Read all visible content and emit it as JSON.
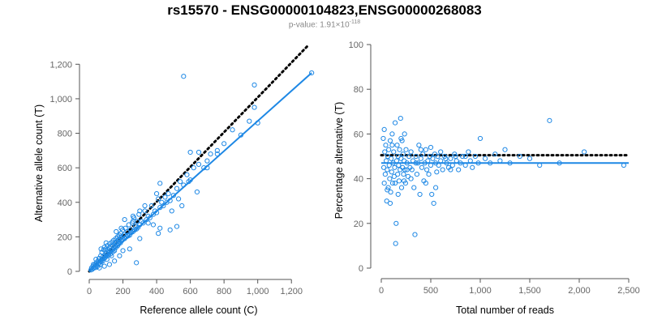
{
  "title": "rs15570 - ENSG00000104823,ENSG00000268083",
  "subtitle": {
    "prefix": "p-value: 1.91×10",
    "exponent": "-118"
  },
  "chart_data": [
    {
      "type": "scatter",
      "xlabel": "Reference allele count (C)",
      "ylabel": "Alternative allele count (T)",
      "xlim": [
        0,
        1300
      ],
      "ylim": [
        0,
        1300
      ],
      "xticks": [
        0,
        200,
        400,
        600,
        800,
        1000,
        1200
      ],
      "xtick_labels": [
        "0",
        "200",
        "400",
        "600",
        "800",
        "1,000",
        "1,200"
      ],
      "yticks": [
        0,
        200,
        400,
        600,
        800,
        1000,
        1200
      ],
      "ytick_labels": [
        "0",
        "200",
        "400",
        "600",
        "800",
        "1,000",
        "1,200"
      ],
      "grid": false,
      "reference_line": {
        "style": "dotted",
        "color": "#000000",
        "points": [
          [
            0,
            0
          ],
          [
            1300,
            1310
          ]
        ]
      },
      "fit_line": {
        "style": "solid",
        "color": "#1e88e5",
        "points": [
          [
            0,
            0
          ],
          [
            1320,
            1150
          ]
        ]
      },
      "point_color": "#1e88e5",
      "points": [
        [
          10,
          8
        ],
        [
          14,
          20
        ],
        [
          18,
          12
        ],
        [
          22,
          30
        ],
        [
          25,
          18
        ],
        [
          30,
          25
        ],
        [
          35,
          40
        ],
        [
          38,
          22
        ],
        [
          42,
          50
        ],
        [
          45,
          35
        ],
        [
          48,
          28
        ],
        [
          52,
          60
        ],
        [
          55,
          45
        ],
        [
          58,
          75
        ],
        [
          60,
          50
        ],
        [
          65,
          40
        ],
        [
          68,
          90
        ],
        [
          70,
          55
        ],
        [
          72,
          65
        ],
        [
          75,
          110
        ],
        [
          78,
          70
        ],
        [
          80,
          60
        ],
        [
          82,
          85
        ],
        [
          85,
          125
        ],
        [
          88,
          75
        ],
        [
          90,
          140
        ],
        [
          92,
          95
        ],
        [
          95,
          80
        ],
        [
          98,
          130
        ],
        [
          100,
          88
        ],
        [
          102,
          105
        ],
        [
          105,
          70
        ],
        [
          108,
          150
        ],
        [
          110,
          100
        ],
        [
          112,
          120
        ],
        [
          115,
          95
        ],
        [
          118,
          135
        ],
        [
          120,
          110
        ],
        [
          122,
          160
        ],
        [
          125,
          100
        ],
        [
          128,
          145
        ],
        [
          130,
          120
        ],
        [
          132,
          90
        ],
        [
          135,
          170
        ],
        [
          138,
          125
        ],
        [
          140,
          150
        ],
        [
          142,
          115
        ],
        [
          145,
          180
        ],
        [
          148,
          135
        ],
        [
          150,
          120
        ],
        [
          152,
          165
        ],
        [
          155,
          145
        ],
        [
          158,
          190
        ],
        [
          160,
          140
        ],
        [
          162,
          170
        ],
        [
          165,
          155
        ],
        [
          168,
          200
        ],
        [
          170,
          150
        ],
        [
          172,
          180
        ],
        [
          175,
          160
        ],
        [
          178,
          210
        ],
        [
          180,
          170
        ],
        [
          182,
          190
        ],
        [
          185,
          165
        ],
        [
          188,
          220
        ],
        [
          190,
          175
        ],
        [
          192,
          200
        ],
        [
          195,
          180
        ],
        [
          198,
          240
        ],
        [
          200,
          185
        ],
        [
          205,
          210
        ],
        [
          210,
          190
        ],
        [
          215,
          250
        ],
        [
          220,
          200
        ],
        [
          225,
          230
        ],
        [
          230,
          205
        ],
        [
          235,
          270
        ],
        [
          240,
          210
        ],
        [
          245,
          240
        ],
        [
          250,
          225
        ],
        [
          255,
          280
        ],
        [
          260,
          230
        ],
        [
          265,
          310
        ],
        [
          270,
          240
        ],
        [
          275,
          260
        ],
        [
          280,
          245
        ],
        [
          285,
          290
        ],
        [
          290,
          255
        ],
        [
          295,
          330
        ],
        [
          300,
          270
        ],
        [
          310,
          290
        ],
        [
          320,
          280
        ],
        [
          330,
          350
        ],
        [
          340,
          300
        ],
        [
          350,
          320
        ],
        [
          360,
          310
        ],
        [
          370,
          380
        ],
        [
          380,
          330
        ],
        [
          390,
          350
        ],
        [
          400,
          340
        ],
        [
          410,
          420
        ],
        [
          420,
          370
        ],
        [
          430,
          400
        ],
        [
          440,
          380
        ],
        [
          450,
          430
        ],
        [
          460,
          400
        ],
        [
          470,
          450
        ],
        [
          480,
          410
        ],
        [
          490,
          350
        ],
        [
          500,
          440
        ],
        [
          520,
          480
        ],
        [
          540,
          520
        ],
        [
          560,
          500
        ],
        [
          580,
          560
        ],
        [
          600,
          530
        ],
        [
          620,
          600
        ],
        [
          650,
          620
        ],
        [
          680,
          600
        ],
        [
          720,
          680
        ],
        [
          760,
          700
        ],
        [
          800,
          740
        ],
        [
          850,
          820
        ],
        [
          900,
          790
        ],
        [
          950,
          870
        ],
        [
          980,
          950
        ],
        [
          1000,
          860
        ],
        [
          1320,
          1150
        ],
        [
          280,
          50
        ],
        [
          410,
          220
        ],
        [
          420,
          250
        ],
        [
          480,
          240
        ],
        [
          520,
          260
        ],
        [
          230,
          210
        ],
        [
          260,
          290
        ],
        [
          400,
          450
        ],
        [
          420,
          510
        ],
        [
          560,
          1130
        ],
        [
          600,
          690
        ],
        [
          650,
          690
        ],
        [
          980,
          1080
        ],
        [
          640,
          460
        ],
        [
          550,
          380
        ],
        [
          530,
          420
        ],
        [
          590,
          520
        ],
        [
          700,
          600
        ],
        [
          760,
          680
        ],
        [
          700,
          640
        ],
        [
          120,
          40
        ],
        [
          150,
          60
        ],
        [
          180,
          90
        ],
        [
          200,
          120
        ],
        [
          90,
          30
        ],
        [
          60,
          20
        ],
        [
          240,
          130
        ],
        [
          300,
          190
        ],
        [
          350,
          280
        ],
        [
          380,
          270
        ],
        [
          25,
          40
        ],
        [
          40,
          70
        ],
        [
          70,
          130
        ],
        [
          100,
          165
        ],
        [
          160,
          230
        ],
        [
          190,
          250
        ],
        [
          210,
          300
        ],
        [
          260,
          320
        ],
        [
          300,
          350
        ],
        [
          330,
          380
        ]
      ]
    },
    {
      "type": "scatter",
      "xlabel": "Total number of reads",
      "ylabel": "Percentage alternative (T)",
      "xlim": [
        0,
        2500
      ],
      "ylim": [
        0,
        100
      ],
      "xticks": [
        0,
        500,
        1000,
        1500,
        2000,
        2500
      ],
      "xtick_labels": [
        "0",
        "500",
        "1,000",
        "1,500",
        "2,000",
        "2,500"
      ],
      "yticks": [
        0,
        20,
        40,
        60,
        80,
        100
      ],
      "ytick_labels": [
        "0",
        "20",
        "40",
        "60",
        "80",
        "100"
      ],
      "grid": false,
      "reference_line": {
        "style": "dotted",
        "color": "#000000",
        "points": [
          [
            0,
            50.5
          ],
          [
            2500,
            50.5
          ]
        ]
      },
      "fit_line": {
        "style": "solid",
        "color": "#1e88e5",
        "points": [
          [
            0,
            47
          ],
          [
            2500,
            47
          ]
        ]
      },
      "point_color": "#1e88e5",
      "points": [
        [
          20,
          58
        ],
        [
          25,
          45
        ],
        [
          30,
          38
        ],
        [
          35,
          52
        ],
        [
          40,
          42
        ],
        [
          45,
          55
        ],
        [
          50,
          48
        ],
        [
          55,
          30
        ],
        [
          60,
          44
        ],
        [
          65,
          50
        ],
        [
          70,
          36
        ],
        [
          75,
          53
        ],
        [
          80,
          46
        ],
        [
          85,
          40
        ],
        [
          90,
          57
        ],
        [
          95,
          34
        ],
        [
          100,
          49
        ],
        [
          105,
          43
        ],
        [
          110,
          60
        ],
        [
          115,
          38
        ],
        [
          120,
          47
        ],
        [
          125,
          52
        ],
        [
          130,
          41
        ],
        [
          135,
          45
        ],
        [
          140,
          65
        ],
        [
          145,
          11
        ],
        [
          150,
          20
        ],
        [
          155,
          48
        ],
        [
          160,
          55
        ],
        [
          165,
          42
        ],
        [
          170,
          50
        ],
        [
          175,
          46
        ],
        [
          180,
          39
        ],
        [
          185,
          53
        ],
        [
          190,
          44
        ],
        [
          195,
          67
        ],
        [
          200,
          49
        ],
        [
          205,
          36
        ],
        [
          210,
          57
        ],
        [
          215,
          45
        ],
        [
          220,
          51
        ],
        [
          225,
          42
        ],
        [
          230,
          48
        ],
        [
          235,
          60
        ],
        [
          240,
          44
        ],
        [
          245,
          38
        ],
        [
          250,
          53
        ],
        [
          260,
          47
        ],
        [
          270,
          41
        ],
        [
          280,
          50
        ],
        [
          290,
          45
        ],
        [
          300,
          52
        ],
        [
          310,
          44
        ],
        [
          320,
          48
        ],
        [
          330,
          36
        ],
        [
          340,
          15
        ],
        [
          350,
          50
        ],
        [
          360,
          42
        ],
        [
          370,
          47
        ],
        [
          380,
          55
        ],
        [
          390,
          33
        ],
        [
          400,
          49
        ],
        [
          410,
          45
        ],
        [
          420,
          51
        ],
        [
          430,
          39
        ],
        [
          440,
          47
        ],
        [
          450,
          53
        ],
        [
          460,
          44
        ],
        [
          470,
          48
        ],
        [
          480,
          42
        ],
        [
          490,
          50
        ],
        [
          500,
          46
        ],
        [
          510,
          33
        ],
        [
          520,
          49
        ],
        [
          530,
          29
        ],
        [
          540,
          51
        ],
        [
          550,
          47
        ],
        [
          560,
          43
        ],
        [
          570,
          50
        ],
        [
          580,
          46
        ],
        [
          600,
          48
        ],
        [
          620,
          44
        ],
        [
          640,
          50
        ],
        [
          660,
          47
        ],
        [
          680,
          45
        ],
        [
          700,
          49
        ],
        [
          720,
          46
        ],
        [
          740,
          51
        ],
        [
          760,
          48
        ],
        [
          780,
          44
        ],
        [
          800,
          47
        ],
        [
          820,
          50
        ],
        [
          850,
          46
        ],
        [
          880,
          52
        ],
        [
          900,
          48
        ],
        [
          920,
          45
        ],
        [
          950,
          50
        ],
        [
          980,
          47
        ],
        [
          1000,
          58
        ],
        [
          1050,
          49
        ],
        [
          1100,
          47
        ],
        [
          1150,
          51
        ],
        [
          1200,
          48
        ],
        [
          1250,
          53
        ],
        [
          1300,
          47
        ],
        [
          1400,
          50
        ],
        [
          1500,
          49
        ],
        [
          1600,
          46
        ],
        [
          1700,
          66
        ],
        [
          1800,
          47
        ],
        [
          2050,
          52
        ],
        [
          2450,
          46
        ],
        [
          30,
          62
        ],
        [
          60,
          35
        ],
        [
          90,
          29
        ],
        [
          110,
          55
        ],
        [
          140,
          38
        ],
        [
          170,
          33
        ],
        [
          200,
          58
        ],
        [
          230,
          39
        ],
        [
          260,
          44
        ],
        [
          300,
          40
        ],
        [
          350,
          47
        ],
        [
          400,
          53
        ],
        [
          450,
          38
        ],
        [
          500,
          54
        ],
        [
          550,
          36
        ],
        [
          600,
          52
        ],
        [
          650,
          49
        ],
        [
          700,
          44
        ],
        [
          750,
          50
        ],
        [
          850,
          50
        ]
      ]
    }
  ]
}
